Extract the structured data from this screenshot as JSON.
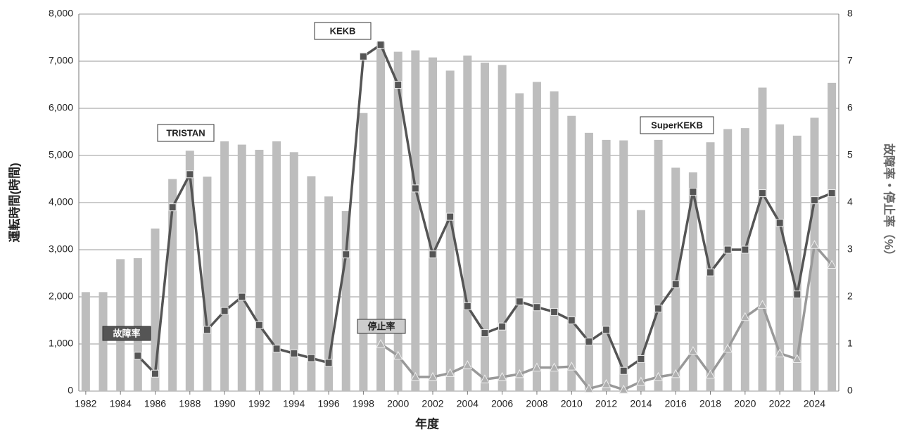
{
  "chart_data": {
    "type": "bar",
    "xlabel": "年度",
    "ylabel": "運転時間(時間)",
    "y2label": "故障率・停止率（%）",
    "annotations": [
      "TRISTAN",
      "KEKB",
      "SuperKEKB"
    ],
    "x": [
      1982,
      1983,
      1984,
      1985,
      1986,
      1987,
      1988,
      1989,
      1990,
      1991,
      1992,
      1993,
      1994,
      1995,
      1996,
      1997,
      1998,
      1999,
      2000,
      2001,
      2002,
      2003,
      2004,
      2005,
      2006,
      2007,
      2008,
      2009,
      2010,
      2011,
      2012,
      2013,
      2014,
      2015,
      2016,
      2017,
      2018,
      2019,
      2020,
      2021,
      2022,
      2023,
      2024,
      2025
    ],
    "xlim": [
      1981.6,
      2025.4
    ],
    "xticks": [
      1982,
      1984,
      1986,
      1988,
      1990,
      1992,
      1994,
      1996,
      1998,
      2000,
      2002,
      2004,
      2006,
      2008,
      2010,
      2012,
      2014,
      2016,
      2018,
      2020,
      2022,
      2024
    ],
    "ylim": [
      0,
      8000
    ],
    "yticks": [
      0,
      {
        "value": 1000,
        "label": "1,000"
      },
      {
        "value": 2000,
        "label": "2,000"
      },
      {
        "value": 3000,
        "label": "3,000"
      },
      {
        "value": 4000,
        "label": "4,000"
      },
      {
        "value": 5000,
        "label": "5,000"
      },
      {
        "value": 6000,
        "label": "6,000"
      },
      {
        "value": 7000,
        "label": "7,000"
      },
      {
        "value": 8000,
        "label": "8,000"
      }
    ],
    "y2lim": [
      0,
      8
    ],
    "y2ticks": [
      0,
      1,
      2,
      3,
      4,
      5,
      6,
      7,
      8
    ],
    "grid": true,
    "series": [
      {
        "type": "bar",
        "color": "#bdbdbd",
        "values": [
          2100,
          2100,
          2800,
          2820,
          3450,
          4500,
          5100,
          4550,
          5300,
          5230,
          5120,
          5300,
          5070,
          4560,
          4130,
          3820,
          5900,
          7400,
          7200,
          7230,
          7080,
          6800,
          7120,
          6970,
          6920,
          6320,
          6560,
          6360,
          5840,
          5480,
          5330,
          5320,
          3840,
          5330,
          4740,
          4640,
          5280,
          5560,
          5580,
          6440,
          5660,
          5420,
          5800,
          6540
        ]
      },
      {
        "type": "line",
        "name": "故障率",
        "axis": "y2",
        "color": "#555555",
        "marker": "square",
        "values": [
          null,
          null,
          null,
          0.75,
          0.37,
          3.9,
          4.6,
          1.3,
          1.7,
          2.0,
          1.4,
          0.9,
          0.8,
          0.7,
          0.6,
          2.9,
          7.1,
          7.35,
          6.5,
          4.3,
          2.9,
          3.7,
          1.8,
          1.23,
          1.37,
          1.9,
          1.78,
          1.68,
          1.5,
          1.05,
          1.3,
          0.43,
          0.68,
          1.75,
          2.27,
          4.23,
          2.52,
          3.0,
          3.0,
          4.2,
          3.57,
          2.05,
          4.05,
          4.2
        ]
      },
      {
        "type": "line",
        "name": "停止率",
        "axis": "y2",
        "color": "#999999",
        "marker": "triangle",
        "values": [
          null,
          null,
          null,
          null,
          null,
          null,
          null,
          null,
          null,
          null,
          null,
          null,
          null,
          null,
          null,
          null,
          null,
          1.0,
          0.75,
          0.3,
          0.3,
          0.38,
          0.55,
          0.25,
          0.3,
          0.36,
          0.5,
          0.5,
          0.52,
          0.05,
          0.15,
          0.03,
          0.2,
          0.3,
          0.36,
          0.85,
          0.35,
          0.9,
          1.57,
          1.83,
          0.8,
          0.68,
          3.1,
          2.68
        ]
      }
    ]
  }
}
